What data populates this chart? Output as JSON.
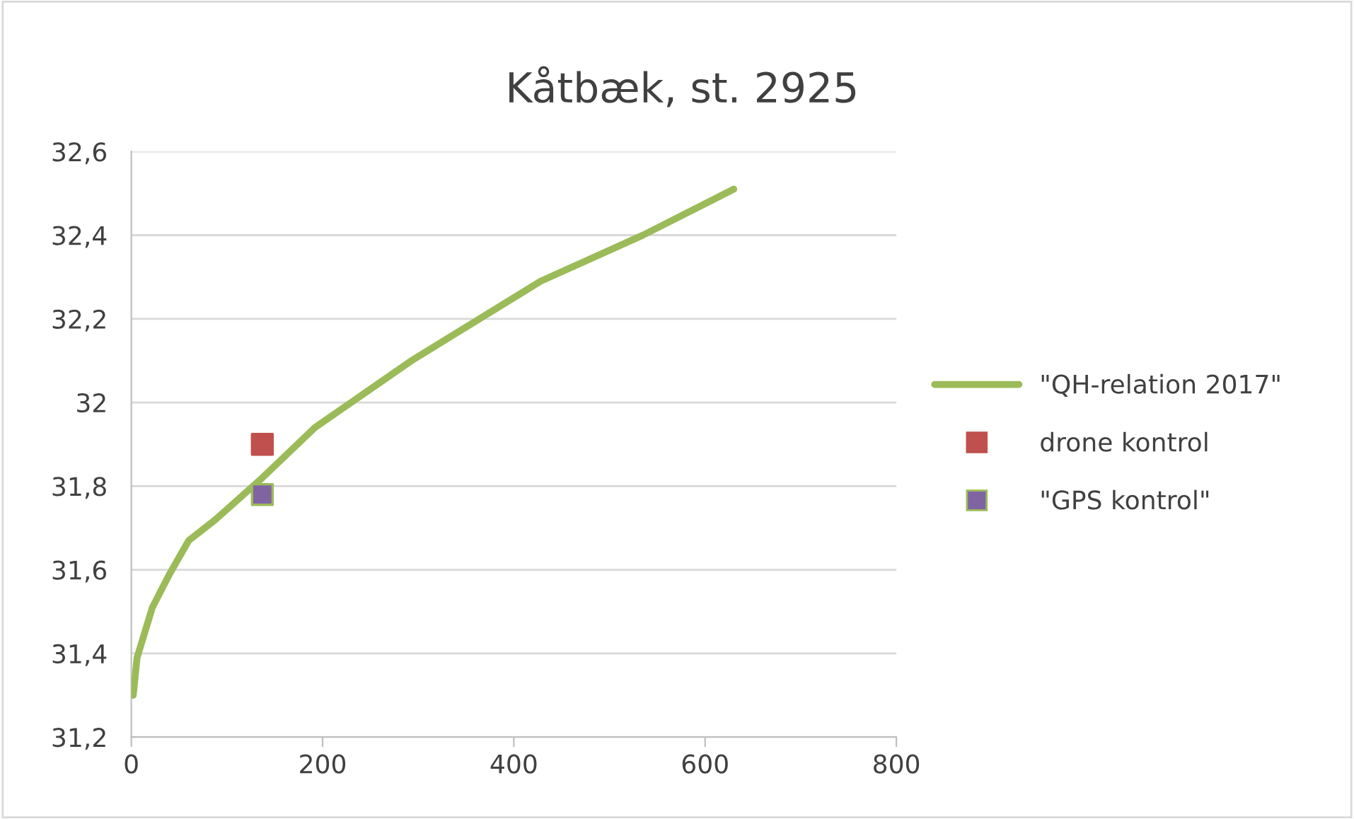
{
  "chart_data": {
    "type": "line",
    "title": "Kåtbæk, st. 2925",
    "series": [
      {
        "name": "\"QH-relation 2017\"",
        "color": "#9bbb59",
        "marker": "none",
        "x": [
          2,
          6,
          22,
          40,
          60,
          88,
          137,
          192,
          293,
          428,
          535,
          630
        ],
        "values": [
          31.3,
          31.39,
          31.51,
          31.59,
          31.67,
          31.72,
          31.82,
          31.94,
          32.1,
          32.29,
          32.4,
          32.51
        ]
      },
      {
        "name": "drone kontrol",
        "type": "scatter",
        "color": "#c0504d",
        "marker": "square",
        "x": [
          137
        ],
        "values": [
          31.9
        ]
      },
      {
        "name": "\"GPS kontrol\"",
        "type": "scatter",
        "color": "#8064a2",
        "marker": "square",
        "x": [
          137
        ],
        "values": [
          31.78
        ]
      }
    ],
    "xlim": [
      0,
      800
    ],
    "xticks": [
      0,
      200,
      400,
      600,
      800
    ],
    "ylim": [
      31.2,
      32.6
    ],
    "yticks": [
      {
        "value": 31.2,
        "label": "31,2"
      },
      {
        "value": 31.4,
        "label": "31,4"
      },
      {
        "value": 31.6,
        "label": "31,6"
      },
      {
        "value": 31.8,
        "label": "31,8"
      },
      {
        "value": 32,
        "label": "32"
      },
      {
        "value": 32.2,
        "label": "32,2"
      },
      {
        "value": 32.4,
        "label": "32,4"
      },
      {
        "value": 32.6,
        "label": "32,6"
      }
    ],
    "grid": "y",
    "legend": "right"
  }
}
